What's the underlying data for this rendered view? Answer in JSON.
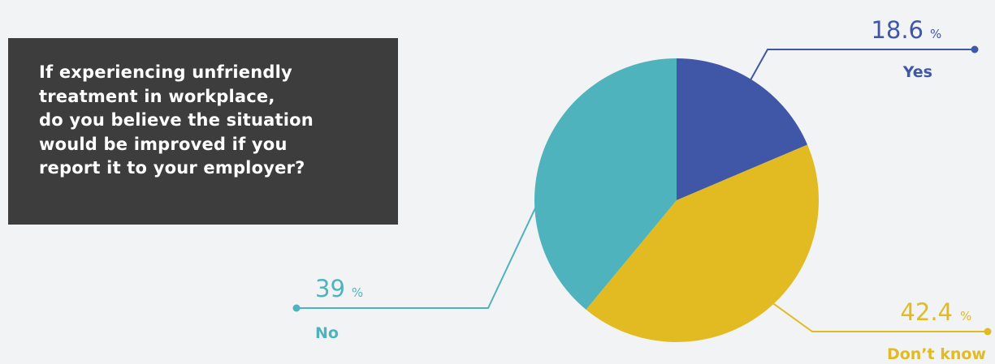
{
  "question": {
    "text": "If experiencing unfriendly\ntreatment in workplace,\ndo you believe the situation\nwould be improved if you\nreport it to your employer?"
  },
  "colors": {
    "yes": "#3f57a6",
    "dont_know": "#e2bb22",
    "no": "#4fb3bd"
  },
  "chart_data": {
    "type": "pie",
    "title": "",
    "unit": "%",
    "slices": [
      {
        "key": "yes",
        "label": "Yes",
        "value": 18.6,
        "value_text": "18.6"
      },
      {
        "key": "dont_know",
        "label": "Don’t know",
        "value": 42.4,
        "value_text": "42.4"
      },
      {
        "key": "no",
        "label": "No",
        "value": 39,
        "value_text": "39"
      }
    ],
    "start_angle": "12 o'clock",
    "direction": "clockwise",
    "legend": "none (callout labels)"
  }
}
